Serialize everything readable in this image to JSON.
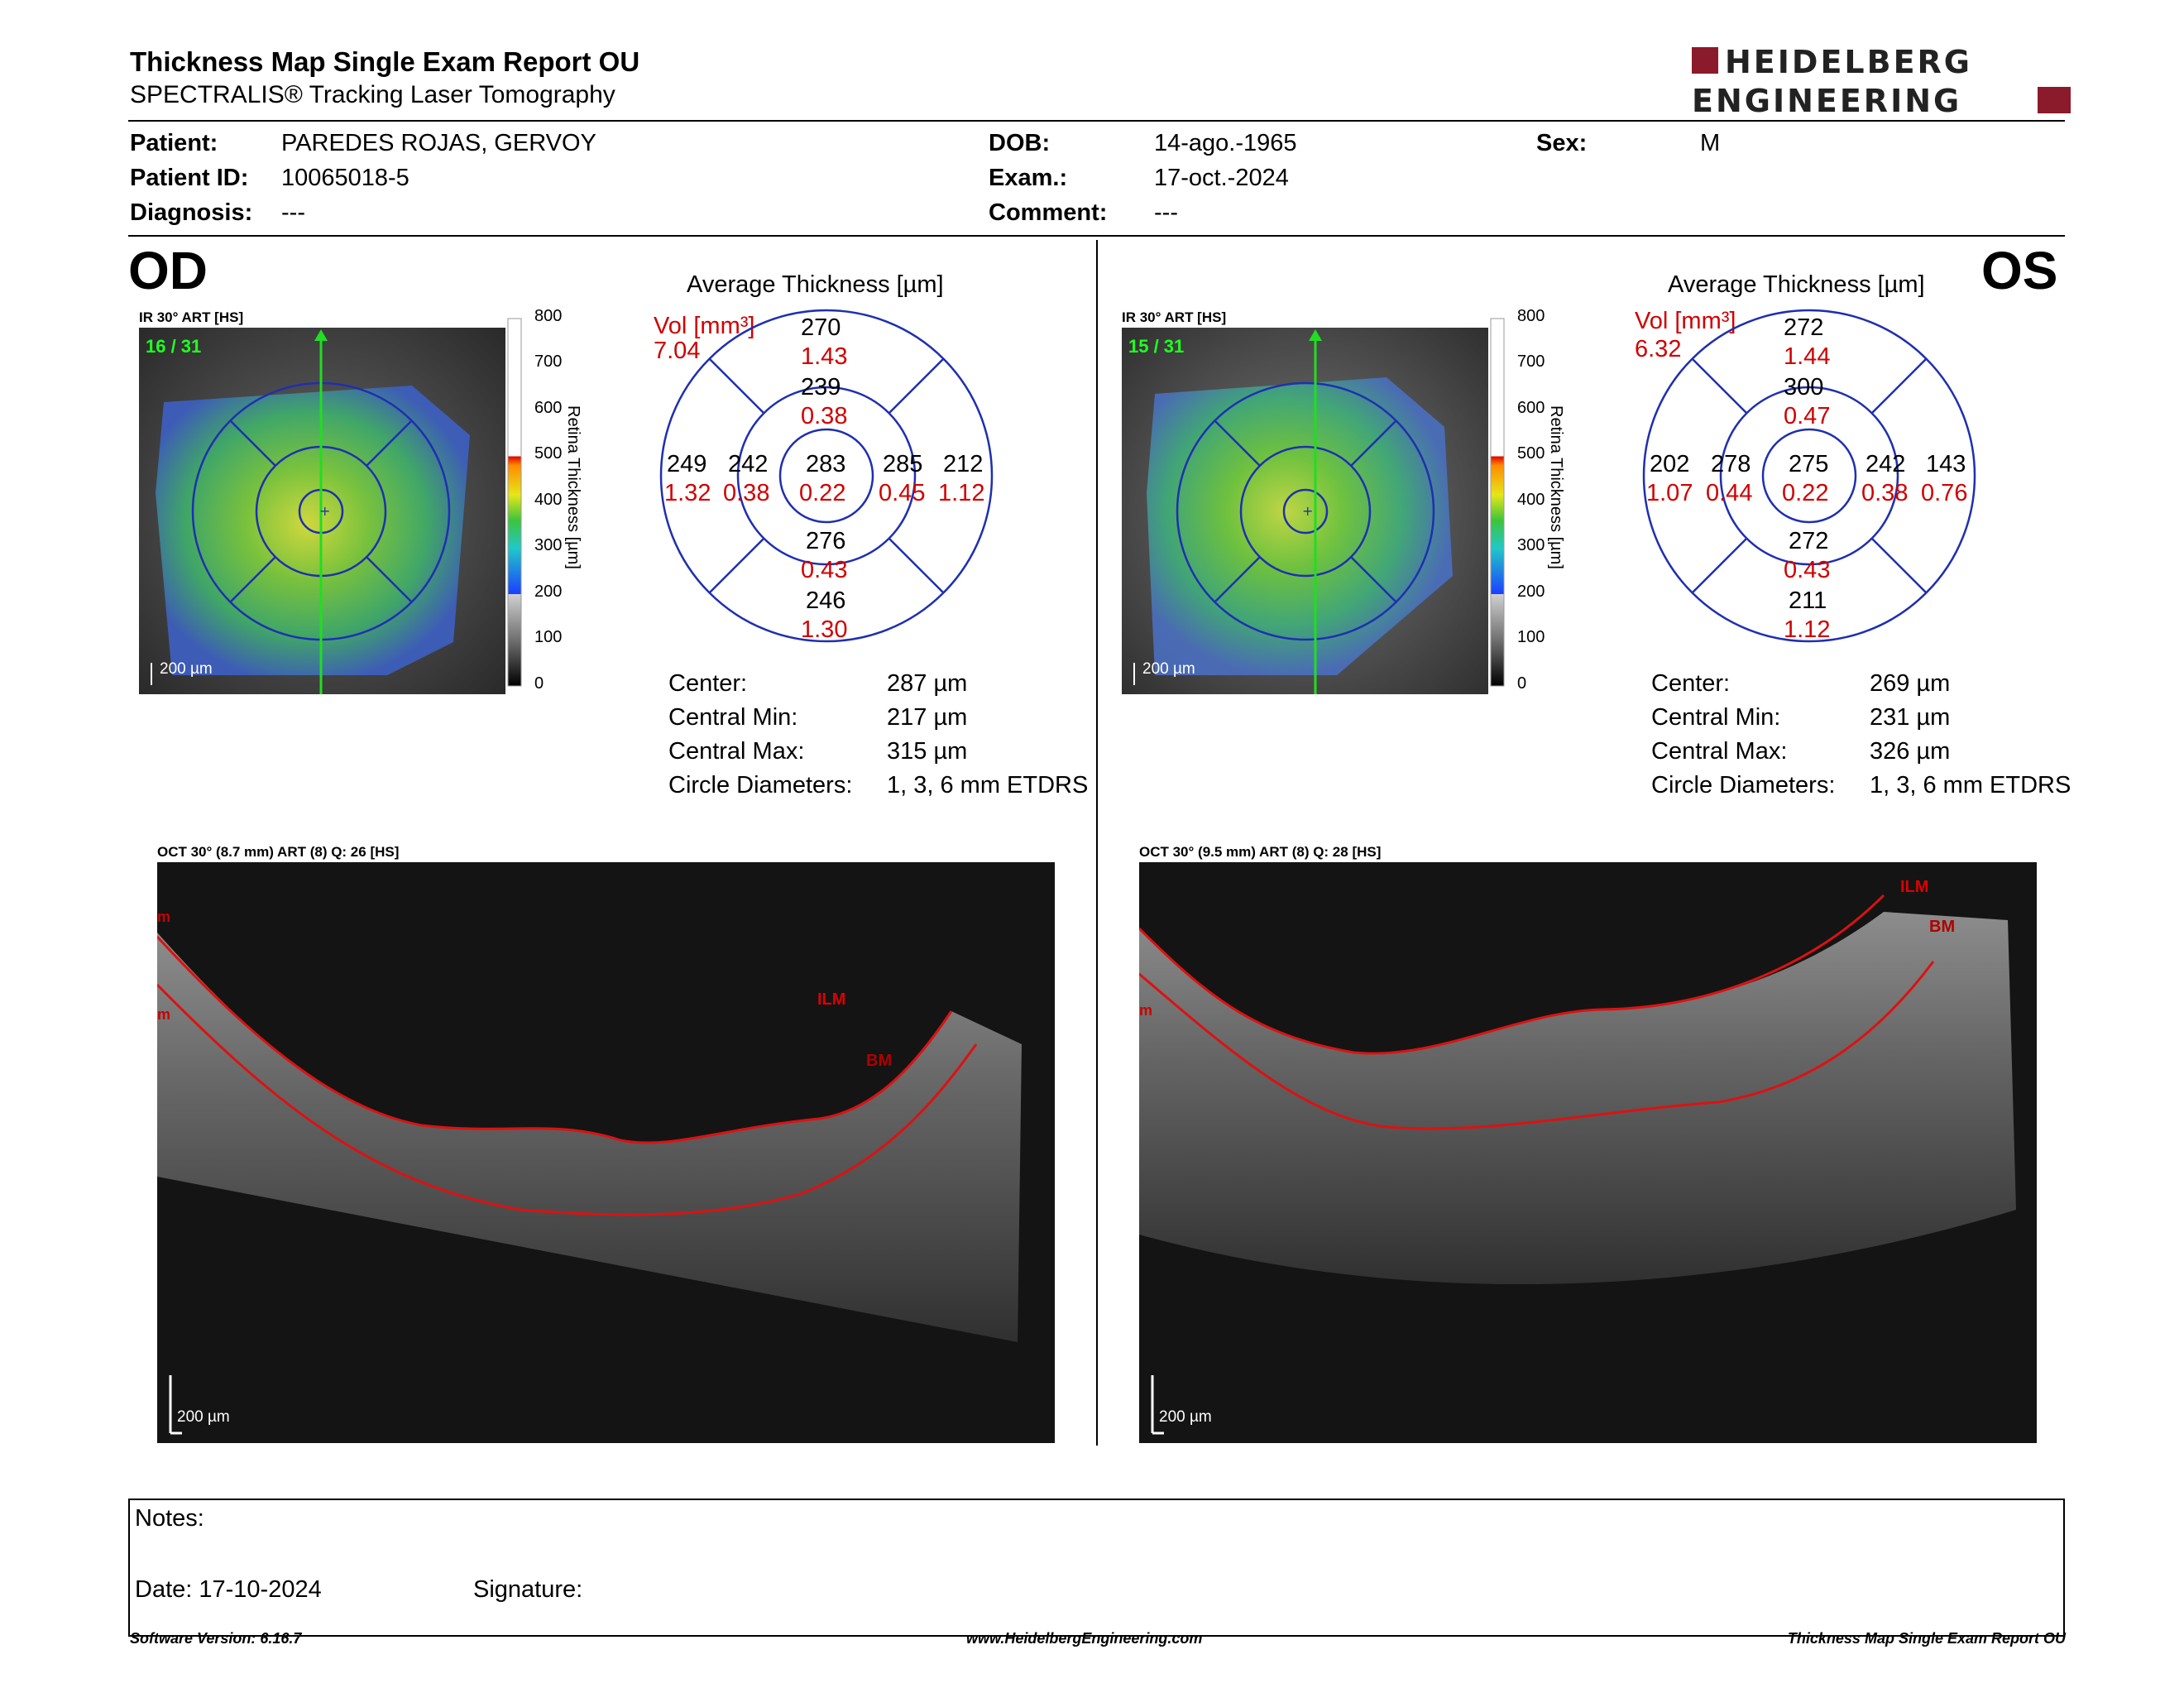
{
  "header": {
    "title": "Thickness Map Single Exam Report OU",
    "subtitle": "SPECTRALIS® Tracking Laser Tomography",
    "logo_line1": "HEIDELBERG",
    "logo_line2": "ENGINEERING"
  },
  "patient": {
    "patient_label": "Patient:",
    "patient_value": "PAREDES ROJAS, GERVOY",
    "id_label": "Patient ID:",
    "id_value": "10065018-5",
    "diagnosis_label": "Diagnosis:",
    "diagnosis_value": "---",
    "dob_label": "DOB:",
    "dob_value": "14-ago.-1965",
    "exam_label": "Exam.:",
    "exam_value": "17-oct.-2024",
    "comment_label": "Comment:",
    "comment_value": "---",
    "sex_label": "Sex:",
    "sex_value": "M"
  },
  "od": {
    "eye_label": "OD",
    "ir_label": "IR 30° ART [HS]",
    "frame": "16 / 31",
    "scale": "200 µm",
    "grid_title": "Average Thickness [µm]",
    "vol_label": "Vol [mm³]",
    "vol_value": "7.04",
    "sectors": {
      "outer_sup_t": "270",
      "outer_sup_v": "1.43",
      "inner_sup_t": "239",
      "inner_sup_v": "0.38",
      "outer_temp_t": "249",
      "outer_temp_v": "1.32",
      "inner_temp_t": "242",
      "inner_temp_v": "0.38",
      "center_t": "283",
      "center_v": "0.22",
      "inner_nas_t": "285",
      "inner_nas_v": "0.45",
      "outer_nas_t": "212",
      "outer_nas_v": "1.12",
      "inner_inf_t": "276",
      "inner_inf_v": "0.43",
      "outer_inf_t": "246",
      "outer_inf_v": "1.30"
    },
    "stats": {
      "center_label": "Center:",
      "center_value": "287 µm",
      "min_label": "Central Min:",
      "min_value": "217 µm",
      "max_label": "Central Max:",
      "max_value": "315 µm",
      "diam_label": "Circle Diameters:",
      "diam_value": "1, 3, 6 mm ETDRS"
    },
    "oct_label": "OCT 30° (8.7 mm) ART (8) Q: 26 [HS]",
    "ilm": "ILM",
    "bm": "BM",
    "oct_scale": "200 µm"
  },
  "os": {
    "eye_label": "OS",
    "ir_label": "IR 30° ART [HS]",
    "frame": "15 / 31",
    "scale": "200 µm",
    "grid_title": "Average Thickness [µm]",
    "vol_label": "Vol [mm³]",
    "vol_value": "6.32",
    "sectors": {
      "outer_sup_t": "272",
      "outer_sup_v": "1.44",
      "inner_sup_t": "300",
      "inner_sup_v": "0.47",
      "outer_temp_t": "202",
      "outer_temp_v": "1.07",
      "inner_temp_t": "278",
      "inner_temp_v": "0.44",
      "center_t": "275",
      "center_v": "0.22",
      "inner_nas_t": "242",
      "inner_nas_v": "0.38",
      "outer_nas_t": "143",
      "outer_nas_v": "0.76",
      "inner_inf_t": "272",
      "inner_inf_v": "0.43",
      "outer_inf_t": "211",
      "outer_inf_v": "1.12"
    },
    "stats": {
      "center_label": "Center:",
      "center_value": "269 µm",
      "min_label": "Central Min:",
      "min_value": "231 µm",
      "max_label": "Central Max:",
      "max_value": "326 µm",
      "diam_label": "Circle Diameters:",
      "diam_value": "1, 3, 6 mm ETDRS"
    },
    "oct_label": "OCT 30° (9.5 mm) ART (8) Q: 28 [HS]",
    "ilm": "ILM",
    "bm": "BM",
    "oct_scale": "200 µm"
  },
  "colorbar": {
    "ticks": [
      "800",
      "700",
      "600",
      "500",
      "400",
      "300",
      "200",
      "100",
      "0"
    ],
    "label": "Retina Thickness [µm]"
  },
  "notes": {
    "notes_label": "Notes:",
    "date_label": "Date: 17-10-2024",
    "signature_label": "Signature:"
  },
  "footer": {
    "version": "Software Version: 6.16.7",
    "url": "www.HeidelbergEngineering.com",
    "report": "Thickness Map Single Exam Report OU"
  },
  "colors": {
    "grid_blue": "#1f2fb0",
    "volume_red": "#d00000",
    "brand_red": "#8b1a2b",
    "ilm_red": "#cc0000"
  }
}
